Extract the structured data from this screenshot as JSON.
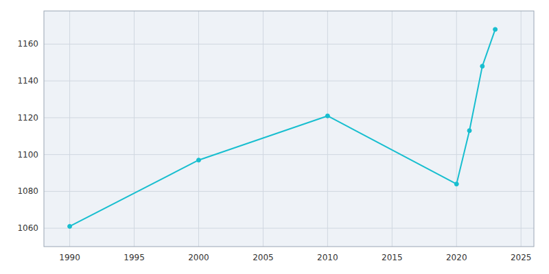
{
  "chart_data": {
    "type": "line",
    "x": [
      1990,
      2000,
      2010,
      2020,
      2021,
      2022,
      2023
    ],
    "values": [
      1061,
      1097,
      1121,
      1084,
      1113,
      1148,
      1168
    ],
    "color": "#17becf",
    "marker": "circle",
    "xlim": [
      1988,
      2026
    ],
    "ylim": [
      1050,
      1178
    ],
    "xticks": [
      1990,
      1995,
      2000,
      2005,
      2010,
      2015,
      2020,
      2025
    ],
    "yticks": [
      1060,
      1080,
      1100,
      1120,
      1140,
      1160
    ],
    "grid": true
  }
}
